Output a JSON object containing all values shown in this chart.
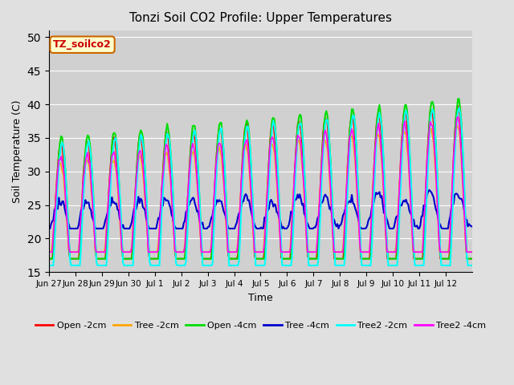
{
  "title": "Tonzi Soil CO2 Profile: Upper Temperatures",
  "ylabel": "Soil Temperature (C)",
  "xlabel": "Time",
  "watermark": "TZ_soilco2",
  "ylim": [
    15,
    51
  ],
  "yticks": [
    15,
    20,
    25,
    30,
    35,
    40,
    45,
    50
  ],
  "x_tick_labels": [
    "Jun 27",
    "Jun 28",
    "Jun 29",
    "Jun 30",
    "Jul 1",
    "Jul 2",
    "Jul 3",
    "Jul 4",
    "Jul 5",
    "Jul 6",
    "Jul 7",
    "Jul 8",
    "Jul 9",
    "Jul 10",
    "Jul 11",
    "Jul 12"
  ],
  "series_names": [
    "Open -2cm",
    "Tree -2cm",
    "Open -4cm",
    "Tree -4cm",
    "Tree2 -2cm",
    "Tree2 -4cm"
  ],
  "series_colors": [
    "#ff0000",
    "#ffa500",
    "#00dd00",
    "#0000cc",
    "#00ffff",
    "#ff00ff"
  ],
  "series_lw": [
    1.2,
    1.2,
    1.5,
    1.5,
    1.5,
    1.2
  ],
  "bg_color": "#e0e0e0",
  "plot_bg_color": "#d0d0d0",
  "n_points": 384,
  "days": 16
}
